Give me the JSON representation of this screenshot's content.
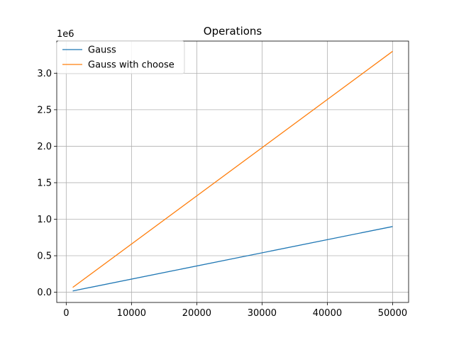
{
  "chart_data": {
    "type": "line",
    "title": "Operations",
    "xlabel": "",
    "ylabel": "",
    "offset_label": "1e6",
    "xlim": [
      -1450,
      52450
    ],
    "ylim": [
      -140000,
      3440000
    ],
    "x_ticks": [
      0,
      10000,
      20000,
      30000,
      40000,
      50000
    ],
    "x_tick_labels": [
      "0",
      "10000",
      "20000",
      "30000",
      "40000",
      "50000"
    ],
    "y_ticks": [
      0,
      500000,
      1000000,
      1500000,
      2000000,
      2500000,
      3000000
    ],
    "y_tick_labels": [
      "0.0",
      "0.5",
      "1.0",
      "1.5",
      "2.0",
      "2.5",
      "3.0"
    ],
    "grid": true,
    "legend_position": "top-left",
    "series": [
      {
        "name": "Gauss",
        "color": "#1f77b4",
        "x": [
          1000,
          50000
        ],
        "y": [
          18000,
          900000
        ]
      },
      {
        "name": "Gauss with choose",
        "color": "#ff7f0e",
        "x": [
          1000,
          50000
        ],
        "y": [
          66000,
          3300000
        ]
      }
    ]
  }
}
